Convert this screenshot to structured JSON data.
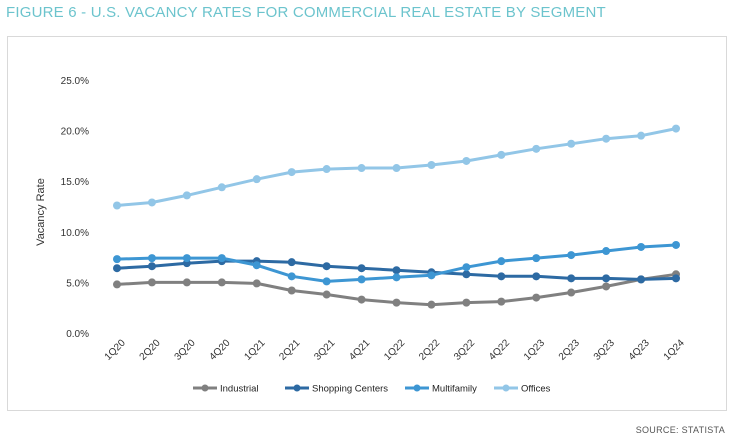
{
  "title": "FIGURE 6 - U.S. VACANCY RATES FOR COMMERCIAL REAL ESTATE BY SEGMENT",
  "source": "SOURCE: STATISTA",
  "chart_data": {
    "type": "line",
    "ylabel": "Vacancy Rate",
    "ylim": [
      0,
      25
    ],
    "yticks": [
      "0.0%",
      "5.0%",
      "10.0%",
      "15.0%",
      "20.0%",
      "25.0%"
    ],
    "ytick_values": [
      0,
      5,
      10,
      15,
      20,
      25
    ],
    "categories": [
      "1Q20",
      "2Q20",
      "3Q20",
      "4Q20",
      "1Q21",
      "2Q21",
      "3Q21",
      "4Q21",
      "1Q22",
      "2Q22",
      "3Q22",
      "4Q22",
      "1Q23",
      "2Q23",
      "3Q23",
      "4Q23",
      "1Q24"
    ],
    "legend_position": "bottom",
    "grid": false,
    "series": [
      {
        "name": "Industrial",
        "color": "#808080",
        "values": [
          4.8,
          5.0,
          5.0,
          5.0,
          4.9,
          4.2,
          3.8,
          3.3,
          3.0,
          2.8,
          3.0,
          3.1,
          3.5,
          4.0,
          4.6,
          5.3,
          5.8
        ]
      },
      {
        "name": "Shopping Centers",
        "color": "#2d6aa3",
        "values": [
          6.4,
          6.6,
          6.9,
          7.1,
          7.1,
          7.0,
          6.6,
          6.4,
          6.2,
          6.0,
          5.8,
          5.6,
          5.6,
          5.4,
          5.4,
          5.3,
          5.4
        ]
      },
      {
        "name": "Multifamily",
        "color": "#3d96d3",
        "values": [
          7.3,
          7.4,
          7.4,
          7.4,
          6.7,
          5.6,
          5.1,
          5.3,
          5.5,
          5.7,
          6.5,
          7.1,
          7.4,
          7.7,
          8.1,
          8.5,
          8.7
        ]
      },
      {
        "name": "Offices",
        "color": "#92c6e7",
        "values": [
          12.6,
          12.9,
          13.6,
          14.4,
          15.2,
          15.9,
          16.2,
          16.3,
          16.3,
          16.6,
          17.0,
          17.6,
          18.2,
          18.7,
          19.2,
          19.5,
          20.2
        ]
      }
    ]
  }
}
